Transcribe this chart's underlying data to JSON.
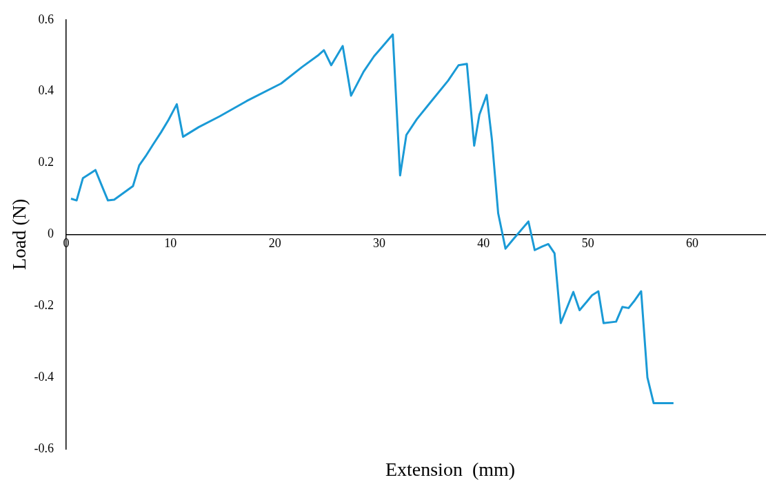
{
  "chart_data": {
    "type": "line",
    "xlabel": "Extension  (mm)",
    "ylabel": "Load (N)",
    "x": [
      0.46,
      1.0,
      1.6,
      2.8,
      3.5,
      4.0,
      4.6,
      6.4,
      7.0,
      7.6,
      8.3,
      9.1,
      9.8,
      10.6,
      11.2,
      12.7,
      14.7,
      17.3,
      20.6,
      22.6,
      24.2,
      24.7,
      25.4,
      26.5,
      27.3,
      28.5,
      29.5,
      30.3,
      31.3,
      32.0,
      32.6,
      33.6,
      34.9,
      36.6,
      37.6,
      38.4,
      39.1,
      39.6,
      40.3,
      40.8,
      41.4,
      42.1,
      42.8,
      44.3,
      44.9,
      45.6,
      46.2,
      46.8,
      47.4,
      48.6,
      49.2,
      49.9,
      50.4,
      51.0,
      51.5,
      52.7,
      53.3,
      53.9,
      54.5,
      55.1,
      55.7,
      56.3,
      58.2
    ],
    "series": [
      {
        "color": "#1a9ad6",
        "values": [
          0.1,
          0.095,
          0.157,
          0.18,
          0.13,
          0.095,
          0.097,
          0.135,
          0.193,
          0.218,
          0.25,
          0.286,
          0.32,
          0.364,
          0.273,
          0.3,
          0.33,
          0.373,
          0.422,
          0.468,
          0.502,
          0.515,
          0.473,
          0.527,
          0.388,
          0.455,
          0.498,
          0.525,
          0.559,
          0.165,
          0.278,
          0.322,
          0.369,
          0.43,
          0.473,
          0.477,
          0.248,
          0.335,
          0.39,
          0.265,
          0.059,
          -0.04,
          -0.015,
          0.036,
          -0.044,
          -0.034,
          -0.027,
          -0.053,
          -0.248,
          -0.161,
          -0.212,
          -0.188,
          -0.17,
          -0.159,
          -0.248,
          -0.244,
          -0.203,
          -0.206,
          -0.184,
          -0.159,
          -0.4,
          -0.472,
          -0.472
        ]
      }
    ],
    "xlim": [
      0,
      67
    ],
    "xticks": [
      0,
      10,
      20,
      30,
      40,
      50,
      60
    ],
    "ylim": [
      -0.6,
      0.6
    ],
    "yticks": [
      {
        "value": -0.6,
        "label": "-0.6"
      },
      {
        "value": -0.4,
        "label": "-0.4"
      },
      {
        "value": -0.2,
        "label": "-0.2"
      },
      {
        "value": 0,
        "label": "0"
      },
      {
        "value": 0.2,
        "label": "0.2"
      },
      {
        "value": 0.4,
        "label": "0.4"
      },
      {
        "value": 0.6,
        "label": "0.6"
      }
    ],
    "grid": false,
    "legend": false,
    "marker": "none",
    "line_style": "solid"
  }
}
